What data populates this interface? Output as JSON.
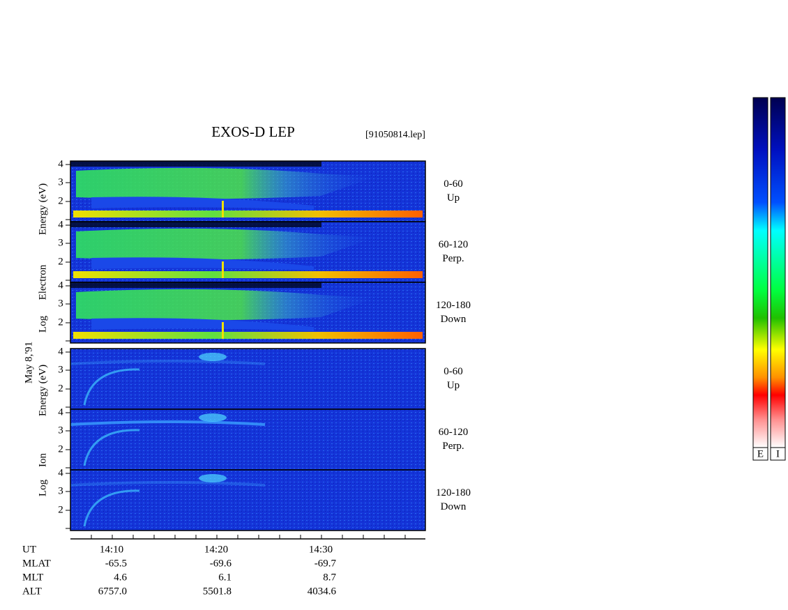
{
  "header": {
    "title": "EXOS-D LEP",
    "file": "[91050814.lep]"
  },
  "side_label": "May 8,'91",
  "groups": [
    {
      "axis_label": [
        "Log",
        "Electron",
        "Energy (eV)"
      ],
      "panels": [
        {
          "angle": "0-60",
          "direction": "Up",
          "ticks": [
            4,
            3,
            2
          ]
        },
        {
          "angle": "60-120",
          "direction": "Perp.",
          "ticks": [
            4,
            3,
            2
          ]
        },
        {
          "angle": "120-180",
          "direction": "Down",
          "ticks": [
            4,
            3,
            2
          ]
        }
      ]
    },
    {
      "axis_label": [
        "Log",
        "Ion",
        "Energy (eV)"
      ],
      "panels": [
        {
          "angle": "0-60",
          "direction": "Up",
          "ticks": [
            4,
            3,
            2
          ]
        },
        {
          "angle": "60-120",
          "direction": "Perp.",
          "ticks": [
            4,
            3,
            2
          ]
        },
        {
          "angle": "120-180",
          "direction": "Down",
          "ticks": [
            4,
            3,
            2
          ]
        }
      ]
    }
  ],
  "footer": {
    "rows": [
      {
        "name": "UT",
        "values": [
          "14:10",
          "14:20",
          "14:30"
        ]
      },
      {
        "name": "MLAT",
        "values": [
          "-65.5",
          "-69.6",
          "-69.7"
        ]
      },
      {
        "name": "MLT",
        "values": [
          "4.6",
          "6.1",
          "8.7"
        ]
      },
      {
        "name": "ALT",
        "values": [
          "6757.0",
          "5501.8",
          "4034.6"
        ]
      }
    ]
  },
  "colorbars": [
    "E",
    "I"
  ]
}
